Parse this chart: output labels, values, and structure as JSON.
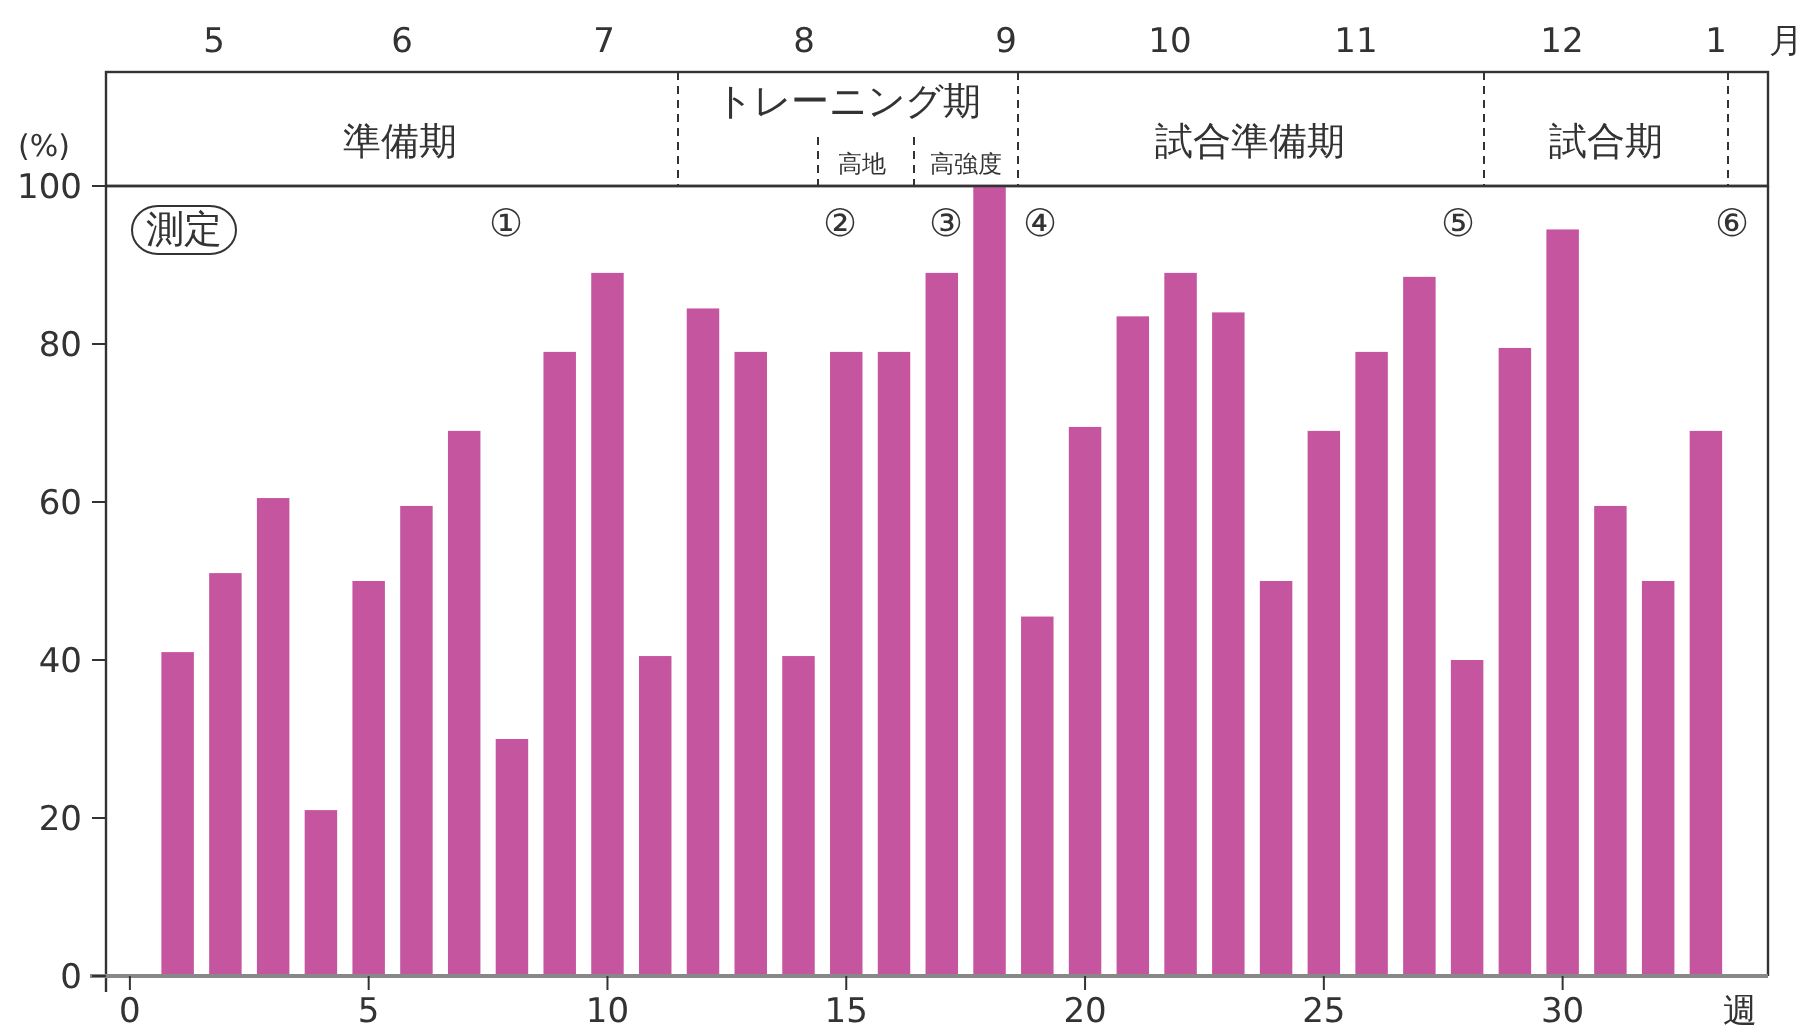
{
  "chart_data": {
    "type": "bar",
    "x": [
      1,
      2,
      3,
      4,
      5,
      6,
      7,
      8,
      9,
      10,
      11,
      12,
      13,
      14,
      15,
      16,
      17,
      18,
      19,
      20,
      21,
      22,
      23,
      24,
      25,
      26,
      27,
      28,
      29,
      30,
      31,
      32,
      33
    ],
    "values": [
      41,
      51,
      60.5,
      21,
      50,
      59.5,
      69,
      30,
      79,
      89,
      40.5,
      84.5,
      79,
      40.5,
      79,
      79,
      89,
      100,
      45.5,
      69.5,
      83.5,
      89,
      84,
      50,
      69,
      79,
      88.5,
      40,
      79.5,
      94.5,
      59.5,
      50,
      69
    ],
    "color": "#c5559f",
    "xlim": [
      -0.5,
      34.3
    ],
    "xticks": [
      0,
      5,
      10,
      15,
      20,
      25,
      30
    ],
    "xlabel": "週",
    "ylim": [
      0,
      100
    ],
    "yticks": [
      0,
      20,
      40,
      60,
      80,
      100
    ],
    "ylabel": "(%)",
    "annotations": [
      "5",
      "6",
      "7",
      "8",
      "9",
      "10",
      "11",
      "12",
      "1",
      "月",
      "準備期",
      "トレーニング期",
      "高地",
      "高強度",
      "試合準備期",
      "試合期",
      "測定",
      "①",
      "②",
      "③",
      "④",
      "⑤",
      "⑥"
    ],
    "grid": false
  }
}
